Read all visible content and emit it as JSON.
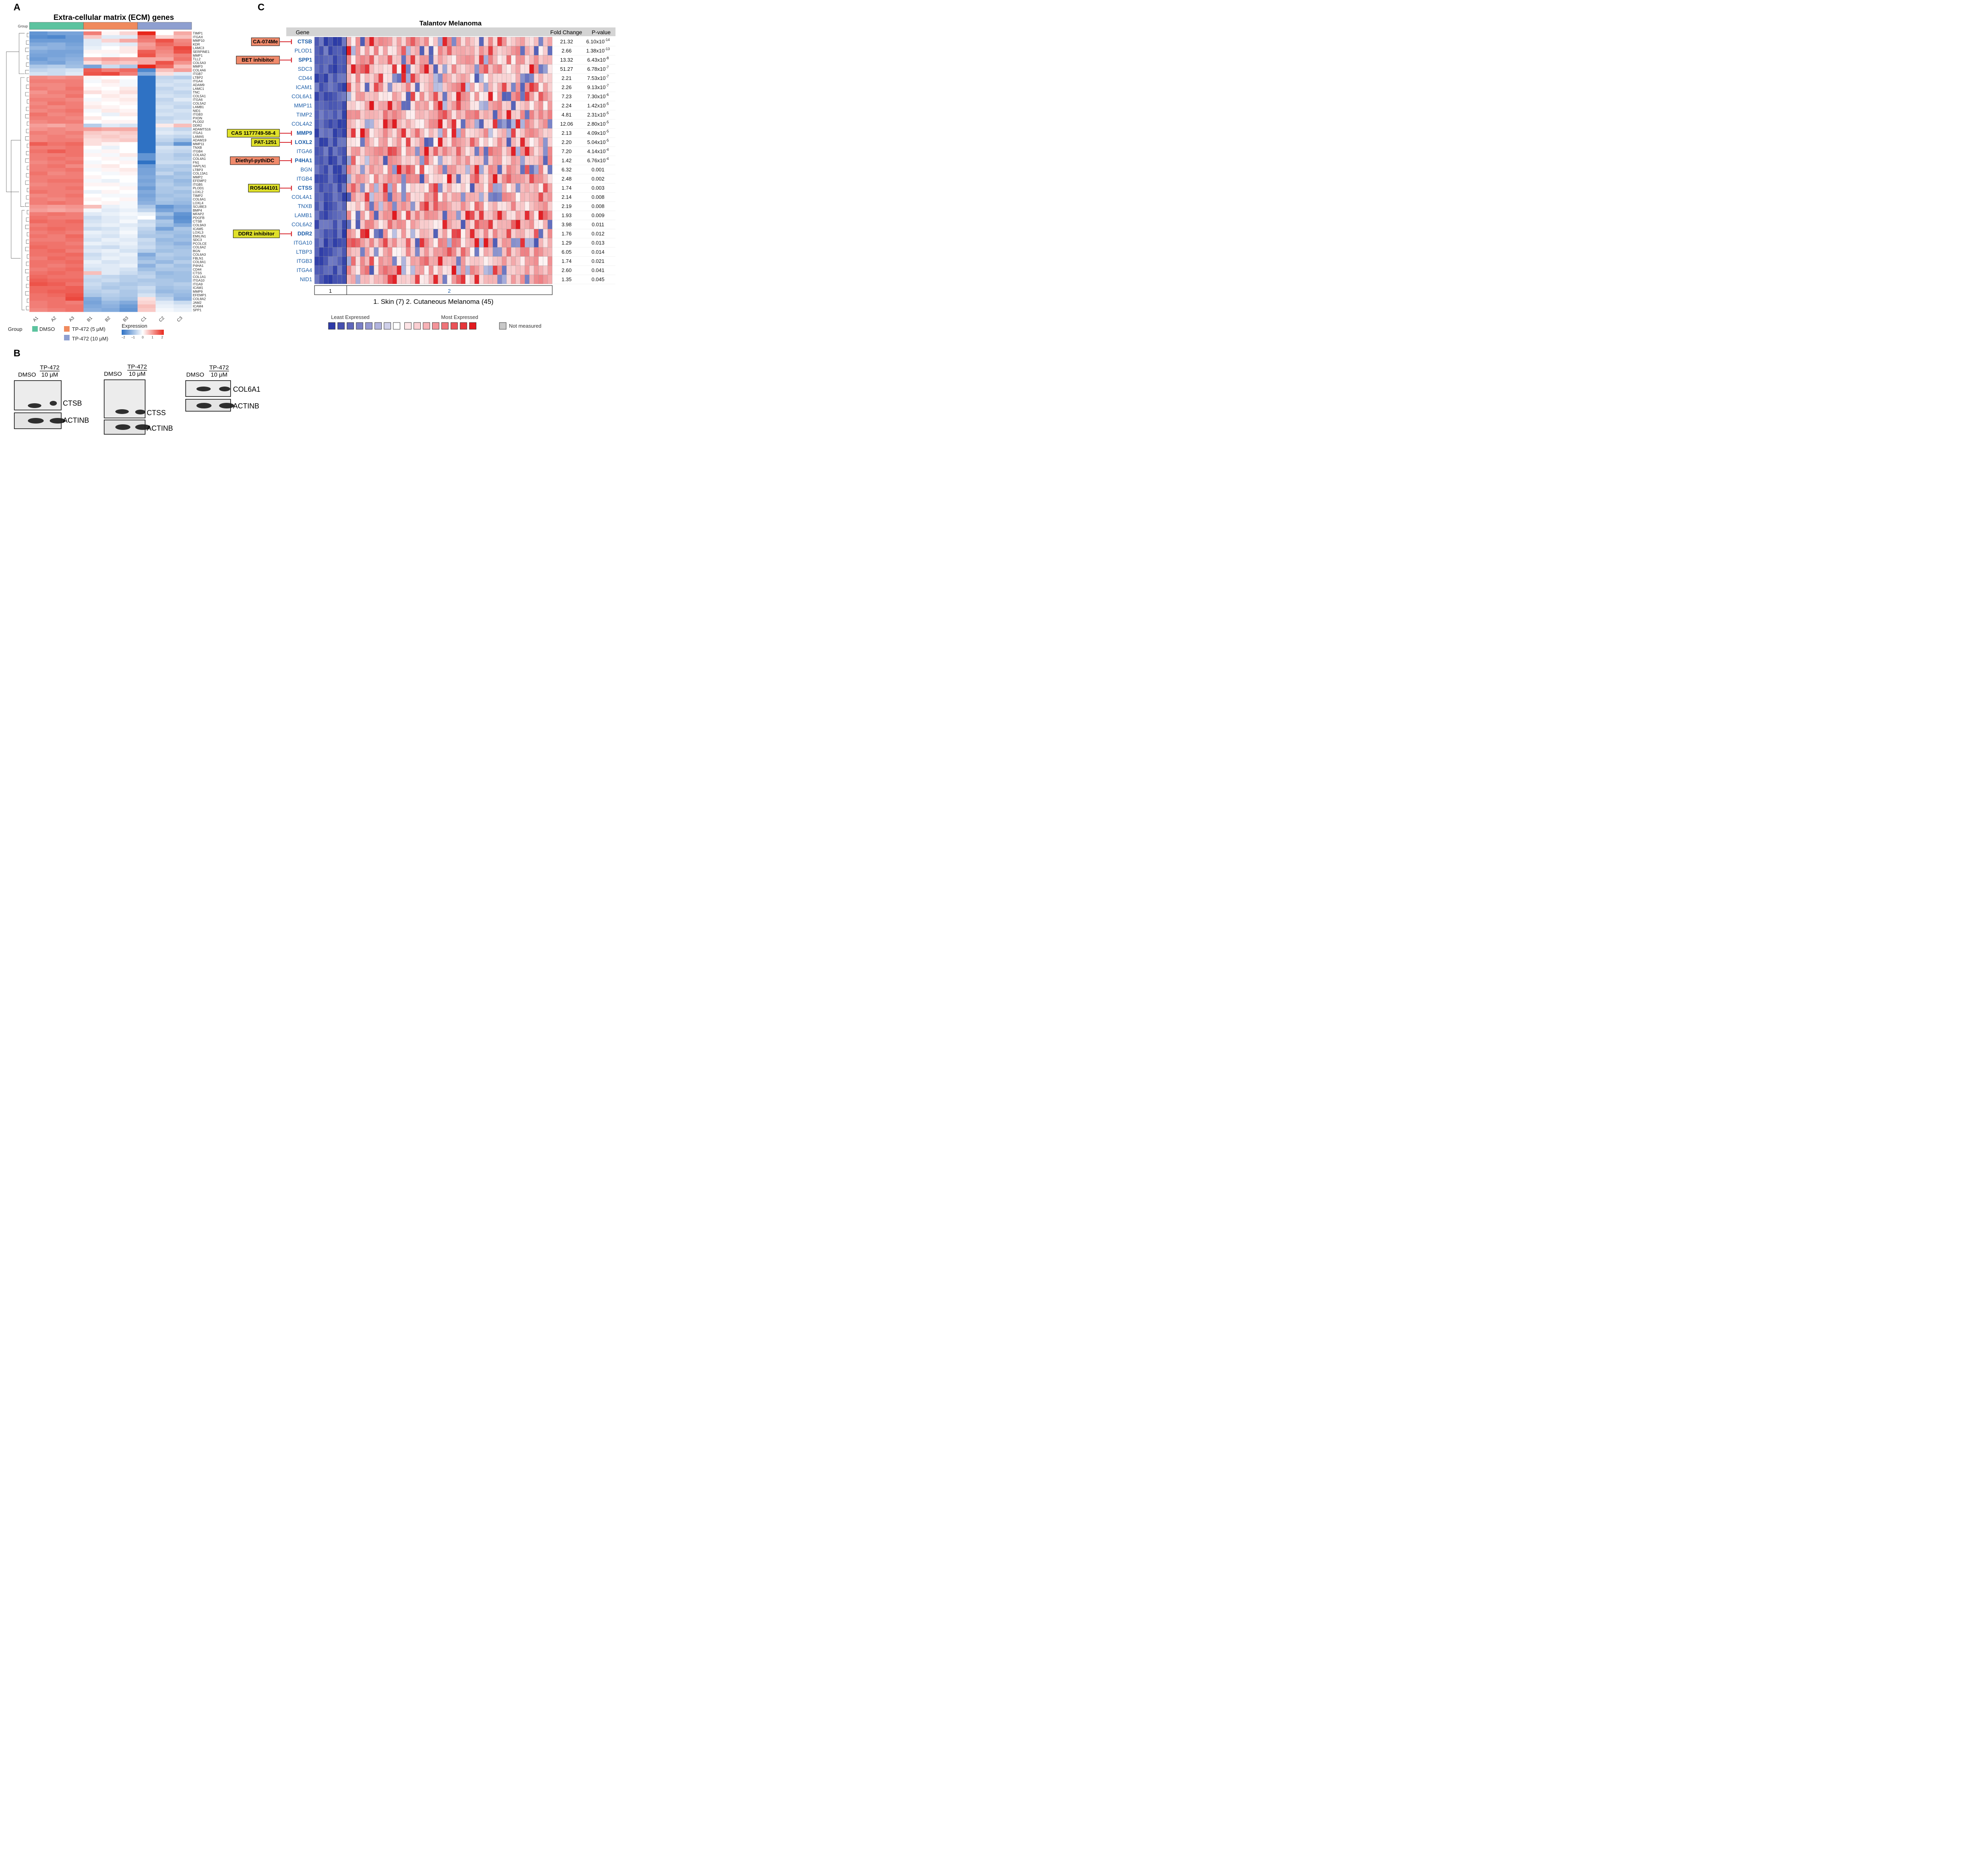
{
  "panels": {
    "a": "A",
    "b": "B",
    "c": "C"
  },
  "panel_a": {
    "title": "Extra-cellular matrix (ECM) genes",
    "group_row_label": "Group",
    "group_colors": [
      "#5cc39f",
      "#f08a5d",
      "#8e9fd0"
    ],
    "columns": [
      "A1",
      "A2",
      "A3",
      "B1",
      "B2",
      "B3",
      "C1",
      "C2",
      "C3"
    ],
    "genes": [
      "TIMP1",
      "ITGAX",
      "MMP10",
      "KDR",
      "LAMC3",
      "SERPINE1",
      "MMP1",
      "TLL2",
      "COL5A3",
      "MMP3",
      "COL4A6",
      "ITGB7",
      "LTBP2",
      "ITGA4",
      "ADAM9",
      "LAMC1",
      "TNC",
      "COL5A1",
      "ITGA6",
      "COL5A2",
      "LAMB1",
      "NID1",
      "ITGB3",
      "PXDN",
      "PLOD2",
      "DDR2",
      "ADAMTS16",
      "ITGA1",
      "LAMA5",
      "ADAM19",
      "MMP11",
      "TNXB",
      "ITGB4",
      "COL4A2",
      "COL4A1",
      "FN1",
      "HAPLN1",
      "LTBP3",
      "COL13A1",
      "MMP2",
      "EFEMP2",
      "ITGB5",
      "PLOD1",
      "LOXL2",
      "TIMP2",
      "COL6A1",
      "LOXL4",
      "SCUBE3",
      "BMP4",
      "MFAP2",
      "PDGFB",
      "CTSB",
      "COL9A3",
      "ICAM5",
      "LOXL3",
      "EMILIN1",
      "SDC3",
      "PCOLCE",
      "COL6A2",
      "BGN",
      "COL6A3",
      "FBLN1",
      "COL8A1",
      "P4HA1",
      "CD44",
      "CTSS",
      "COL1A1",
      "ITGA10",
      "ITGA9",
      "ICAM1",
      "MMP9",
      "EFEMP1",
      "COL8A2",
      "JAM2",
      "ICAM4",
      "SPP1"
    ],
    "legend": {
      "group_title": "Group",
      "groups": [
        "DMSO",
        "TP-472 (5 μM)",
        "TP-472 (10 μM)"
      ],
      "expression_title": "Expression",
      "ticks": [
        "−2",
        "−1",
        "0",
        "1",
        "2"
      ]
    },
    "chart_data": {
      "type": "heatmap",
      "title": "Extra-cellular matrix (ECM) genes",
      "color_scale": {
        "min": -2,
        "max": 2,
        "low": "#2f72c4",
        "mid": "#ffffff",
        "high": "#e8281c"
      },
      "rows": "genes",
      "columns": [
        "A1",
        "A2",
        "A3",
        "B1",
        "B2",
        "B3",
        "C1",
        "C2",
        "C3"
      ],
      "values": [
        [
          -1.5,
          -1.3,
          -1.3,
          1.2,
          0.1,
          0.4,
          2.0,
          0.0,
          0.8
        ],
        [
          -1.6,
          -1.7,
          -1.4,
          0.5,
          -0.3,
          -0.3,
          1.3,
          0.4,
          0.6
        ],
        [
          -1.4,
          -1.4,
          -1.4,
          -0.3,
          0.4,
          0.8,
          1.2,
          1.6,
          1.1
        ],
        [
          -1.2,
          -1.1,
          -1.3,
          -0.3,
          -0.2,
          -0.3,
          0.9,
          1.4,
          1.2
        ],
        [
          -1.0,
          -1.1,
          -1.2,
          -0.2,
          0.0,
          0.2,
          1.0,
          1.2,
          1.7
        ],
        [
          -1.2,
          -1.3,
          -1.3,
          0.1,
          0.1,
          0.2,
          1.5,
          1.1,
          1.6
        ],
        [
          -1.3,
          -1.3,
          -1.2,
          0.0,
          -0.1,
          0.0,
          1.6,
          1.0,
          1.2
        ],
        [
          -1.4,
          -1.2,
          -1.1,
          0.7,
          0.9,
          0.8,
          0.8,
          0.8,
          1.3
        ],
        [
          -1.2,
          -1.3,
          -1.0,
          0.3,
          0.6,
          0.5,
          0.8,
          1.6,
          1.0
        ],
        [
          -0.8,
          -0.7,
          -0.9,
          -1.3,
          -0.5,
          -0.8,
          2.0,
          1.4,
          0.6
        ],
        [
          -0.6,
          -0.5,
          -0.4,
          1.5,
          1.2,
          1.4,
          -1.7,
          0.6,
          0.9
        ],
        [
          -0.4,
          -0.5,
          -0.3,
          1.6,
          1.7,
          1.2,
          -1.2,
          0.3,
          -0.3
        ],
        [
          1.1,
          1.0,
          1.1,
          0.1,
          0.0,
          0.0,
          -2.0,
          -0.6,
          -0.7
        ],
        [
          1.2,
          1.2,
          1.2,
          -0.1,
          0.2,
          -0.1,
          -2.0,
          -0.5,
          -0.4
        ],
        [
          1.1,
          1.1,
          1.2,
          0.0,
          0.1,
          -0.1,
          -2.0,
          -0.4,
          -0.5
        ],
        [
          1.2,
          1.1,
          1.3,
          0.1,
          0.0,
          0.2,
          -2.0,
          -0.6,
          -0.4
        ],
        [
          1.0,
          1.2,
          1.2,
          0.3,
          0.1,
          0.3,
          -2.0,
          -0.5,
          -0.6
        ],
        [
          1.1,
          1.1,
          1.3,
          0.0,
          0.2,
          0.1,
          -2.0,
          -0.4,
          -0.5
        ],
        [
          1.2,
          1.2,
          1.1,
          -0.1,
          0.1,
          0.2,
          -2.0,
          -0.6,
          -0.3
        ],
        [
          1.1,
          1.3,
          1.2,
          0.1,
          0.0,
          0.1,
          -2.0,
          -0.5,
          -0.5
        ],
        [
          1.2,
          1.1,
          1.2,
          0.2,
          0.1,
          0.0,
          -2.0,
          -0.4,
          -0.6
        ],
        [
          1.1,
          1.2,
          1.3,
          -0.1,
          0.2,
          0.1,
          -2.0,
          -0.5,
          -0.4
        ],
        [
          1.3,
          1.1,
          1.2,
          0.0,
          -0.2,
          0.2,
          -2.0,
          -0.4,
          -0.5
        ],
        [
          1.2,
          1.2,
          1.1,
          0.2,
          0.0,
          0.0,
          -2.0,
          -0.6,
          -0.5
        ],
        [
          1.1,
          1.2,
          1.2,
          0.0,
          0.1,
          0.1,
          -2.0,
          -0.5,
          -0.3
        ],
        [
          0.9,
          0.8,
          1.0,
          -0.7,
          -0.3,
          -0.4,
          -2.0,
          0.2,
          0.6
        ],
        [
          1.0,
          1.1,
          1.0,
          0.9,
          0.8,
          0.8,
          -2.0,
          -0.4,
          -0.6
        ],
        [
          1.2,
          1.1,
          1.2,
          0.5,
          0.4,
          0.5,
          -2.0,
          -0.3,
          -0.4
        ],
        [
          1.1,
          1.2,
          1.1,
          0.4,
          0.5,
          0.4,
          -2.0,
          -0.5,
          -0.6
        ],
        [
          1.1,
          1.2,
          1.2,
          0.3,
          0.4,
          0.5,
          -2.0,
          -0.6,
          -0.9
        ],
        [
          1.5,
          1.3,
          1.4,
          0.3,
          0.1,
          0.0,
          -2.0,
          -0.8,
          -1.5
        ],
        [
          1.2,
          1.2,
          1.3,
          0.0,
          -0.2,
          0.0,
          -2.0,
          -0.4,
          -0.5
        ],
        [
          1.3,
          1.5,
          1.3,
          -0.1,
          0.1,
          0.0,
          -2.0,
          -0.5,
          -0.6
        ],
        [
          1.2,
          1.2,
          1.3,
          0.1,
          -0.1,
          0.2,
          -1.5,
          -0.6,
          -0.8
        ],
        [
          1.2,
          1.3,
          1.2,
          0.0,
          0.1,
          -0.1,
          -1.5,
          -0.6,
          -0.7
        ],
        [
          1.1,
          1.2,
          1.3,
          -0.1,
          0.0,
          0.1,
          -2.0,
          -0.5,
          -0.5
        ],
        [
          1.2,
          1.3,
          1.1,
          0.1,
          0.2,
          0.0,
          -1.4,
          -0.7,
          -0.8
        ],
        [
          1.2,
          1.2,
          1.3,
          -0.1,
          0.1,
          0.2,
          -1.3,
          -0.8,
          -0.7
        ],
        [
          1.3,
          1.1,
          1.2,
          0.0,
          -0.1,
          0.1,
          -1.3,
          -0.6,
          -0.9
        ],
        [
          1.2,
          1.2,
          1.2,
          0.1,
          0.0,
          0.0,
          -1.2,
          -0.9,
          -0.8
        ],
        [
          1.2,
          1.3,
          1.3,
          -0.1,
          -0.2,
          0.0,
          -1.3,
          -0.8,
          -1.0
        ],
        [
          1.1,
          1.2,
          1.2,
          0.1,
          0.1,
          -0.1,
          -1.2,
          -0.7,
          -0.9
        ],
        [
          1.2,
          1.2,
          1.3,
          0.0,
          0.0,
          0.1,
          -1.4,
          -0.8,
          -0.7
        ],
        [
          1.3,
          1.2,
          1.2,
          -0.2,
          0.1,
          0.0,
          -1.2,
          -0.8,
          -0.9
        ],
        [
          1.1,
          1.2,
          1.3,
          0.0,
          -0.1,
          -0.1,
          -1.3,
          -0.9,
          -0.8
        ],
        [
          1.2,
          1.1,
          1.2,
          0.1,
          0.0,
          0.1,
          -1.2,
          -0.8,
          -0.9
        ],
        [
          1.2,
          1.3,
          1.2,
          0.0,
          0.1,
          -0.1,
          -1.1,
          -0.9,
          -1.0
        ],
        [
          1.0,
          0.9,
          1.0,
          0.6,
          -0.2,
          -0.1,
          -0.8,
          -1.5,
          -1.2
        ],
        [
          0.9,
          0.8,
          0.9,
          -0.1,
          -0.3,
          -0.2,
          -0.6,
          -1.3,
          -1.1
        ],
        [
          1.2,
          1.3,
          1.2,
          -0.3,
          -0.2,
          -0.1,
          -0.2,
          -0.9,
          -1.5
        ],
        [
          1.3,
          1.2,
          1.2,
          -0.5,
          -0.3,
          -0.2,
          0.0,
          -1.2,
          -1.6
        ],
        [
          1.4,
          1.3,
          1.4,
          -0.4,
          -0.3,
          -0.1,
          -0.5,
          -0.8,
          -1.5
        ],
        [
          1.2,
          1.3,
          1.3,
          -0.3,
          -0.2,
          -0.3,
          -0.4,
          -0.9,
          -1.2
        ],
        [
          1.3,
          1.4,
          1.3,
          -0.5,
          -0.4,
          -0.2,
          -0.6,
          -1.3,
          -0.8
        ],
        [
          1.2,
          1.3,
          1.2,
          -0.2,
          -0.3,
          -0.1,
          -0.7,
          -0.9,
          -0.9
        ],
        [
          1.3,
          1.2,
          1.4,
          -0.3,
          -0.4,
          -0.2,
          -0.8,
          -0.8,
          -1.0
        ],
        [
          1.2,
          1.2,
          1.3,
          -0.4,
          -0.2,
          -0.3,
          -0.5,
          -1.0,
          -0.9
        ],
        [
          1.3,
          1.3,
          1.2,
          -0.2,
          -0.3,
          -0.2,
          -0.6,
          -0.9,
          -1.1
        ],
        [
          1.4,
          1.3,
          1.3,
          -0.4,
          -0.5,
          -0.3,
          -0.5,
          -0.8,
          -0.9
        ],
        [
          1.3,
          1.4,
          1.2,
          -0.3,
          -0.2,
          -0.4,
          -0.7,
          -0.9,
          -0.8
        ],
        [
          1.3,
          1.3,
          1.4,
          -0.5,
          -0.3,
          -0.2,
          -1.2,
          -0.7,
          -0.8
        ],
        [
          1.2,
          1.4,
          1.3,
          -0.4,
          -0.2,
          -0.3,
          -1.0,
          -0.8,
          -0.9
        ],
        [
          1.3,
          1.3,
          1.4,
          -0.2,
          -0.4,
          -0.3,
          -0.8,
          -1.0,
          -0.7
        ],
        [
          1.3,
          1.2,
          1.3,
          -0.3,
          -0.3,
          -0.2,
          -1.1,
          -0.7,
          -0.9
        ],
        [
          1.2,
          1.3,
          1.4,
          -0.4,
          -0.3,
          -0.4,
          -0.9,
          -0.8,
          -0.8
        ],
        [
          1.3,
          1.4,
          1.3,
          0.6,
          -0.3,
          -0.5,
          -0.7,
          -1.0,
          -0.9
        ],
        [
          1.4,
          1.3,
          1.3,
          -0.5,
          -0.6,
          -0.7,
          -0.6,
          -0.9,
          -0.9
        ],
        [
          1.5,
          1.4,
          1.4,
          -0.6,
          -0.5,
          -0.7,
          -0.8,
          -0.8,
          -0.9
        ],
        [
          1.6,
          1.5,
          1.3,
          -0.5,
          -0.7,
          -0.8,
          -0.7,
          -0.8,
          -0.7
        ],
        [
          1.4,
          1.4,
          1.5,
          -0.6,
          -0.8,
          -0.7,
          -0.5,
          -0.9,
          -0.8
        ],
        [
          1.4,
          1.5,
          1.5,
          -0.7,
          -0.6,
          -0.8,
          -0.6,
          -1.0,
          -0.9
        ],
        [
          1.3,
          1.4,
          1.6,
          -0.8,
          -0.7,
          -0.8,
          -0.4,
          -0.8,
          -1.0
        ],
        [
          1.3,
          1.3,
          1.7,
          -1.2,
          -0.8,
          -0.9,
          0.3,
          -0.6,
          -1.1
        ],
        [
          1.2,
          1.3,
          1.2,
          -1.3,
          -1.0,
          -1.2,
          0.4,
          -0.3,
          -0.5
        ],
        [
          1.2,
          1.3,
          1.3,
          -1.2,
          -1.1,
          -1.4,
          0.6,
          -0.2,
          -0.3
        ],
        [
          1.1,
          1.2,
          1.3,
          -1.1,
          -1.2,
          -1.5,
          0.5,
          -0.1,
          -0.2
        ]
      ]
    }
  },
  "panel_b": {
    "blots": [
      {
        "head_drug": "TP-472",
        "conc": "10 μM",
        "ctrl": "DMSO",
        "target": "CTSB",
        "loading": "ACTINB"
      },
      {
        "head_drug": "TP-472",
        "conc": "10 μM",
        "ctrl": "DMSO",
        "target": "CTSS",
        "loading": "ACTINB"
      },
      {
        "head_drug": "TP-472",
        "conc": "10 μM",
        "ctrl": "DMSO",
        "target": "COL6A1",
        "loading": "ACTINB"
      }
    ]
  },
  "panel_c": {
    "title": "Talantov Melanoma",
    "header_gene": "Gene",
    "header_fold": "Fold Change",
    "header_p": "P-value",
    "genes": [
      {
        "name": "CTSB",
        "fold": "21.32",
        "p_base": "6.10x10",
        "p_exp": "-14",
        "bold": true,
        "drug": "CA-074Me",
        "drug_color": "#f08a6b"
      },
      {
        "name": "PLOD1",
        "fold": "2.66",
        "p_base": "1.38x10",
        "p_exp": "-13",
        "bold": false
      },
      {
        "name": "SPP1",
        "fold": "13.32",
        "p_base": "6.43x10",
        "p_exp": "-8",
        "bold": true,
        "drug": "BET inhibitor",
        "drug_color": "#f08a6b"
      },
      {
        "name": "SDC3",
        "fold": "51.27",
        "p_base": "6.78x10",
        "p_exp": "-7",
        "bold": false
      },
      {
        "name": "CD44",
        "fold": "2.21",
        "p_base": "7.53x10",
        "p_exp": "-7",
        "bold": false
      },
      {
        "name": "ICAM1",
        "fold": "2.26",
        "p_base": "9.13x10",
        "p_exp": "-7",
        "bold": false
      },
      {
        "name": "COL6A1",
        "fold": "7.23",
        "p_base": "7.30x10",
        "p_exp": "-6",
        "bold": false
      },
      {
        "name": "MMP11",
        "fold": "2.24",
        "p_base": "1.42x10",
        "p_exp": "-5",
        "bold": false
      },
      {
        "name": "TIMP2",
        "fold": "4.81",
        "p_base": "2.31x10",
        "p_exp": "-5",
        "bold": false
      },
      {
        "name": "COL4A2",
        "fold": "12.06",
        "p_base": "2.80x10",
        "p_exp": "-5",
        "bold": false
      },
      {
        "name": "MMP9",
        "fold": "2.13",
        "p_base": "4.09x10",
        "p_exp": "-5",
        "bold": true,
        "drug": "CAS 1177749-58-4",
        "drug_color": "#dfe02a"
      },
      {
        "name": "LOXL2",
        "fold": "2.20",
        "p_base": "5.04x10",
        "p_exp": "-5",
        "bold": true,
        "drug": "PAT-1251",
        "drug_color": "#dfe02a"
      },
      {
        "name": "ITGA6",
        "fold": "7.20",
        "p_base": "4.14x10",
        "p_exp": "-4",
        "bold": false
      },
      {
        "name": "P4HA1",
        "fold": "1.42",
        "p_base": "6.76x10",
        "p_exp": "-4",
        "bold": true,
        "drug": "Diethyl-pythiDC",
        "drug_color": "#f08a6b"
      },
      {
        "name": "BGN",
        "fold": "6.32",
        "p_base": "0.001",
        "p_exp": "",
        "bold": false
      },
      {
        "name": "ITGB4",
        "fold": "2.48",
        "p_base": "0.002",
        "p_exp": "",
        "bold": false
      },
      {
        "name": "CTSS",
        "fold": "1.74",
        "p_base": "0.003",
        "p_exp": "",
        "bold": true,
        "drug": "RO5444101",
        "drug_color": "#dfe02a"
      },
      {
        "name": "COL4A1",
        "fold": "2.14",
        "p_base": "0.008",
        "p_exp": "",
        "bold": false
      },
      {
        "name": "TNXB",
        "fold": "2.19",
        "p_base": "0.008",
        "p_exp": "",
        "bold": false
      },
      {
        "name": "LAMB1",
        "fold": "1.93",
        "p_base": "0.009",
        "p_exp": "",
        "bold": false
      },
      {
        "name": "COL6A2",
        "fold": "3.98",
        "p_base": "0.011",
        "p_exp": "",
        "bold": false
      },
      {
        "name": "DDR2",
        "fold": "1.76",
        "p_base": "0.012",
        "p_exp": "",
        "bold": true,
        "drug": "DDR2 inhibitor",
        "drug_color": "#dfe02a"
      },
      {
        "name": "ITGA10",
        "fold": "1.29",
        "p_base": "0.013",
        "p_exp": "",
        "bold": false
      },
      {
        "name": "LTBP3",
        "fold": "6.05",
        "p_base": "0.014",
        "p_exp": "",
        "bold": false
      },
      {
        "name": "ITGB3",
        "fold": "1.74",
        "p_base": "0.021",
        "p_exp": "",
        "bold": false
      },
      {
        "name": "ITGA4",
        "fold": "2.60",
        "p_base": "0.041",
        "p_exp": "",
        "bold": false
      },
      {
        "name": "NID1",
        "fold": "1.35",
        "p_base": "0.045",
        "p_exp": "",
        "bold": false
      }
    ],
    "group_labels": [
      "1",
      "2"
    ],
    "group_sizes": [
      7,
      45
    ],
    "caption": "1. Skin (7)  2. Cutaneous Melanoma (45)",
    "legend_least": "Least Expressed",
    "legend_most": "Most Expressed",
    "legend_not_measured": "Not measured",
    "legend_colors": [
      "#2d3aa8",
      "#4650b0",
      "#5e66ba",
      "#7a7fc6",
      "#9598d2",
      "#b1b3de",
      "#cfd0ea",
      "#ffffff",
      "#fde4e6",
      "#fbcfd2",
      "#f7b2b6",
      "#f39499",
      "#ef7479",
      "#ea5258",
      "#e6363b",
      "#e21b20"
    ],
    "colors": {
      "low": "#2b3aa6",
      "mid": "#ffffff",
      "high": "#e0161c",
      "header_bg": "#d4d4d4",
      "gene_text": "#1a5ca8",
      "inhibit": "#d7262d"
    }
  }
}
